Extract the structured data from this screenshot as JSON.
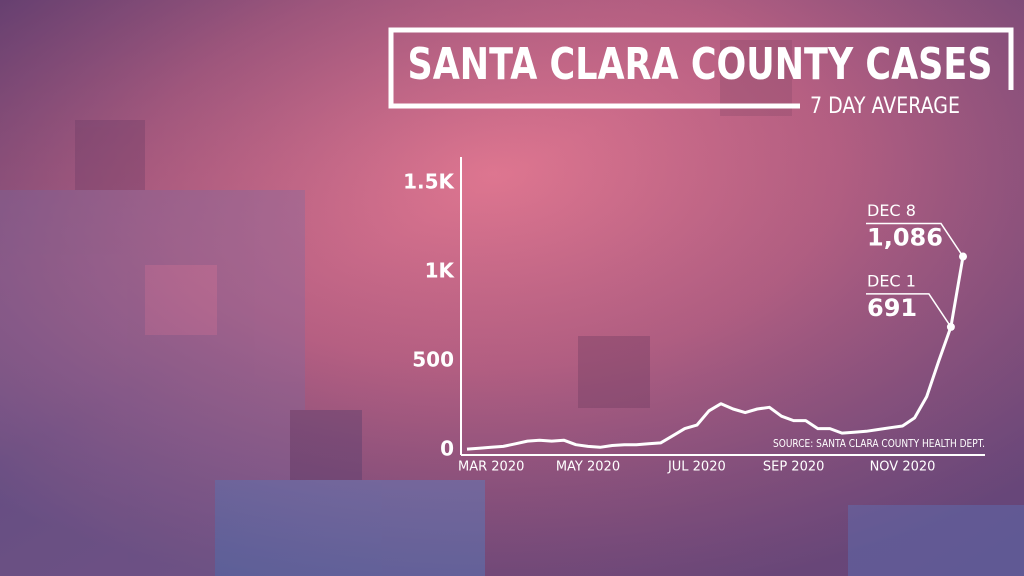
{
  "chart_data": {
    "type": "line",
    "title": "SANTA CLARA COUNTY CASES",
    "subtitle": "7 DAY AVERAGE",
    "source": "SOURCE: SANTA CLARA COUNTY HEALTH DEPT.",
    "categories": [
      null,
      null,
      "MAR 2020",
      null,
      null,
      null,
      null,
      null,
      null,
      null,
      "MAY 2020",
      null,
      null,
      null,
      null,
      null,
      null,
      null,
      null,
      "JUL 2020",
      null,
      null,
      null,
      null,
      null,
      null,
      null,
      "SEP 2020",
      null,
      null,
      null,
      null,
      null,
      null,
      null,
      null,
      "NOV 2020",
      null,
      null,
      null,
      "DEC 1",
      "DEC 8"
    ],
    "values": [
      5,
      10,
      15,
      20,
      35,
      50,
      55,
      50,
      55,
      30,
      20,
      15,
      25,
      30,
      30,
      35,
      40,
      80,
      120,
      140,
      220,
      260,
      230,
      210,
      230,
      240,
      190,
      165,
      165,
      120,
      120,
      95,
      100,
      105,
      115,
      125,
      135,
      180,
      300,
      500,
      691,
      1086
    ],
    "value_labels": [
      null,
      null,
      null,
      null,
      null,
      null,
      null,
      null,
      null,
      null,
      null,
      null,
      null,
      null,
      null,
      null,
      null,
      null,
      null,
      null,
      null,
      null,
      null,
      null,
      null,
      null,
      null,
      null,
      null,
      null,
      null,
      null,
      null,
      null,
      null,
      null,
      null,
      null,
      null,
      null,
      "691",
      "1,086"
    ],
    "color": "#ffffff",
    "ylim": [
      0,
      1600
    ],
    "yticks": [
      0,
      500,
      {
        "value": 1000,
        "label": "1K"
      },
      {
        "value": 1500,
        "label": "1.5K"
      }
    ],
    "grid": false
  }
}
